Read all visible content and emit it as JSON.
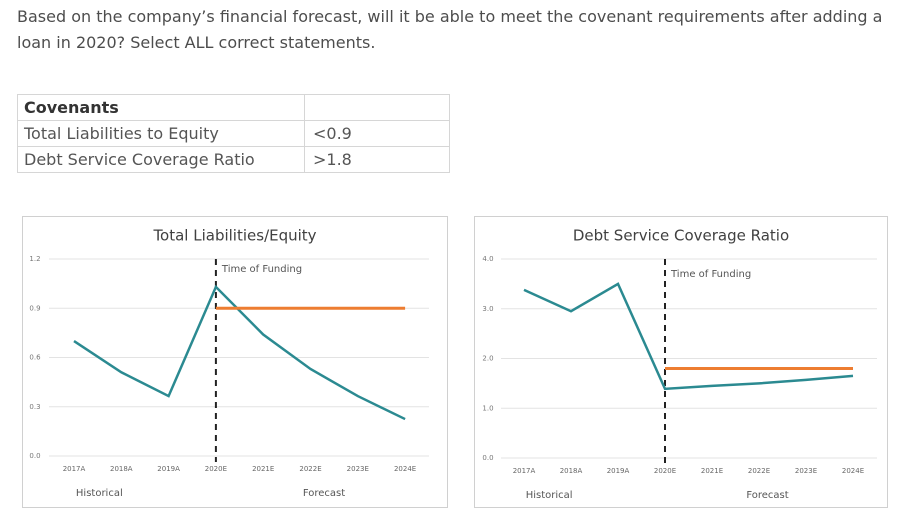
{
  "question": "Based on the company’s financial forecast, will it be able to meet the covenant requirements after adding a loan in 2020? Select ALL correct statements.",
  "table": {
    "header": "Covenants",
    "rows": [
      [
        "Total Liabilities to Equity",
        "<0.9"
      ],
      [
        "Debt Service Coverage Ratio",
        ">1.8"
      ]
    ]
  },
  "chart_data": [
    {
      "type": "line",
      "title": "Total Liabilities/Equity",
      "categories": [
        "2017A",
        "2018A",
        "2019A",
        "2020E",
        "2021E",
        "2022E",
        "2023E",
        "2024E"
      ],
      "series": [
        {
          "color": "#2b8a91",
          "values": [
            0.7,
            0.51,
            0.365,
            1.03,
            0.74,
            0.53,
            0.365,
            0.225
          ]
        },
        {
          "color": "#ed7d31",
          "values": [
            null,
            null,
            null,
            0.9,
            0.9,
            0.9,
            0.9,
            0.9
          ]
        }
      ],
      "ylim": [
        0,
        1.2
      ],
      "yticks": [
        {
          "value": 0,
          "label": "0.0"
        },
        0.3,
        0.6,
        0.9,
        1.2
      ],
      "grid": true,
      "annotation": {
        "text": "Time of Funding",
        "x": "2020E"
      },
      "x_groups": [
        "Historical",
        "Forecast"
      ]
    },
    {
      "type": "line",
      "title": "Debt Service Coverage Ratio",
      "categories": [
        "2017A",
        "2018A",
        "2019A",
        "2020E",
        "2021E",
        "2022E",
        "2023E",
        "2024E"
      ],
      "series": [
        {
          "color": "#2b8a91",
          "values": [
            3.38,
            2.95,
            3.5,
            1.39,
            1.45,
            1.5,
            1.57,
            1.65
          ]
        },
        {
          "color": "#ed7d31",
          "values": [
            null,
            null,
            null,
            1.8,
            1.8,
            1.8,
            1.8,
            1.8
          ]
        }
      ],
      "ylim": [
        0,
        4
      ],
      "yticks": [
        {
          "value": 0,
          "label": "0.0"
        },
        {
          "value": 1,
          "label": "1.0"
        },
        {
          "value": 2,
          "label": "2.0"
        },
        {
          "value": 3,
          "label": "3.0"
        },
        {
          "value": 4,
          "label": "4.0"
        }
      ],
      "grid": true,
      "annotation": {
        "text": "Time of Funding",
        "x": "2020E"
      },
      "x_groups": [
        "Historical",
        "Forecast"
      ]
    }
  ]
}
